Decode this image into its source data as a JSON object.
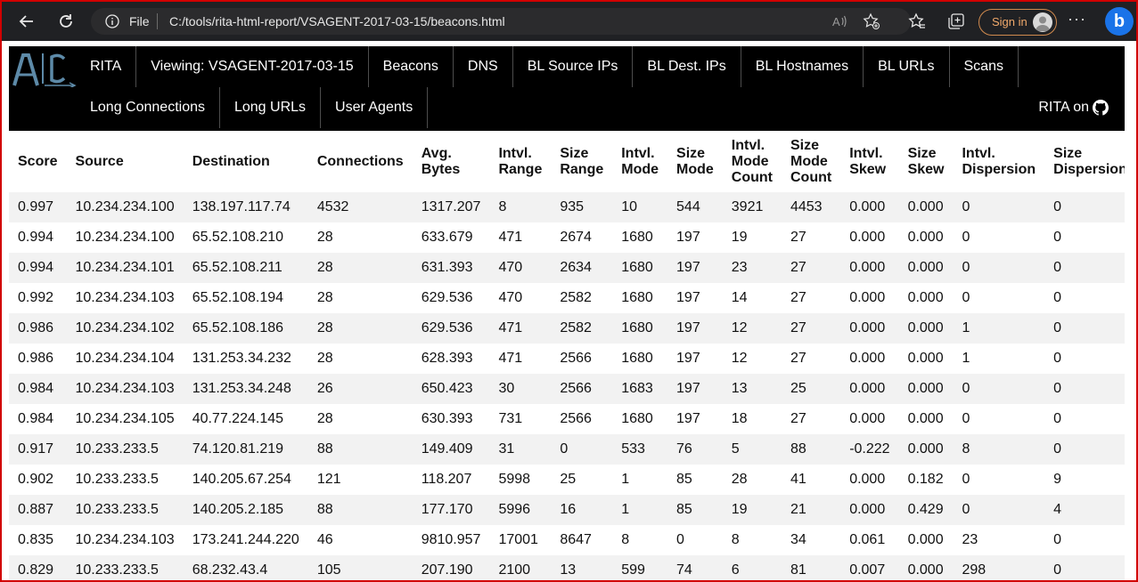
{
  "browser": {
    "file_label": "File",
    "url": "C:/tools/rita-html-report/VSAGENT-2017-03-15/beacons.html",
    "sign_in": "Sign in",
    "more": "···",
    "bing": "b"
  },
  "nav": {
    "row1": [
      "RITA",
      "Viewing: VSAGENT-2017-03-15",
      "Beacons",
      "DNS",
      "BL Source IPs",
      "BL Dest. IPs",
      "BL Hostnames",
      "BL URLs",
      "Scans"
    ],
    "row2": [
      "Long Connections",
      "Long URLs",
      "User Agents"
    ],
    "github": "RITA on"
  },
  "table": {
    "headers": [
      "Score",
      "Source",
      "Destination",
      "Connections",
      "Avg. Bytes",
      "Intvl. Range",
      "Size Range",
      "Intvl. Mode",
      "Size Mode",
      "Intvl. Mode Count",
      "Size Mode Count",
      "Intvl. Skew",
      "Size Skew",
      "Intvl. Dispersion",
      "Size Dispersion"
    ],
    "rows": [
      [
        "0.997",
        "10.234.234.100",
        "138.197.117.74",
        "4532",
        "1317.207",
        "8",
        "935",
        "10",
        "544",
        "3921",
        "4453",
        "0.000",
        "0.000",
        "0",
        "0"
      ],
      [
        "0.994",
        "10.234.234.100",
        "65.52.108.210",
        "28",
        "633.679",
        "471",
        "2674",
        "1680",
        "197",
        "19",
        "27",
        "0.000",
        "0.000",
        "0",
        "0"
      ],
      [
        "0.994",
        "10.234.234.101",
        "65.52.108.211",
        "28",
        "631.393",
        "470",
        "2634",
        "1680",
        "197",
        "23",
        "27",
        "0.000",
        "0.000",
        "0",
        "0"
      ],
      [
        "0.992",
        "10.234.234.103",
        "65.52.108.194",
        "28",
        "629.536",
        "470",
        "2582",
        "1680",
        "197",
        "14",
        "27",
        "0.000",
        "0.000",
        "0",
        "0"
      ],
      [
        "0.986",
        "10.234.234.102",
        "65.52.108.186",
        "28",
        "629.536",
        "471",
        "2582",
        "1680",
        "197",
        "12",
        "27",
        "0.000",
        "0.000",
        "1",
        "0"
      ],
      [
        "0.986",
        "10.234.234.104",
        "131.253.34.232",
        "28",
        "628.393",
        "471",
        "2566",
        "1680",
        "197",
        "12",
        "27",
        "0.000",
        "0.000",
        "1",
        "0"
      ],
      [
        "0.984",
        "10.234.234.103",
        "131.253.34.248",
        "26",
        "650.423",
        "30",
        "2566",
        "1683",
        "197",
        "13",
        "25",
        "0.000",
        "0.000",
        "0",
        "0"
      ],
      [
        "0.984",
        "10.234.234.105",
        "40.77.224.145",
        "28",
        "630.393",
        "731",
        "2566",
        "1680",
        "197",
        "18",
        "27",
        "0.000",
        "0.000",
        "0",
        "0"
      ],
      [
        "0.917",
        "10.233.233.5",
        "74.120.81.219",
        "88",
        "149.409",
        "31",
        "0",
        "533",
        "76",
        "5",
        "88",
        "-0.222",
        "0.000",
        "8",
        "0"
      ],
      [
        "0.902",
        "10.233.233.5",
        "140.205.67.254",
        "121",
        "118.207",
        "5998",
        "25",
        "1",
        "85",
        "28",
        "41",
        "0.000",
        "0.182",
        "0",
        "9"
      ],
      [
        "0.887",
        "10.233.233.5",
        "140.205.2.185",
        "88",
        "177.170",
        "5996",
        "16",
        "1",
        "85",
        "19",
        "21",
        "0.000",
        "0.429",
        "0",
        "4"
      ],
      [
        "0.835",
        "10.234.234.103",
        "173.241.244.220",
        "46",
        "9810.957",
        "17001",
        "8647",
        "8",
        "0",
        "8",
        "34",
        "0.061",
        "0.000",
        "23",
        "0"
      ],
      [
        "0.829",
        "10.233.233.5",
        "68.232.43.4",
        "105",
        "207.190",
        "2100",
        "13",
        "599",
        "74",
        "6",
        "81",
        "0.007",
        "0.000",
        "298",
        "0"
      ]
    ]
  }
}
